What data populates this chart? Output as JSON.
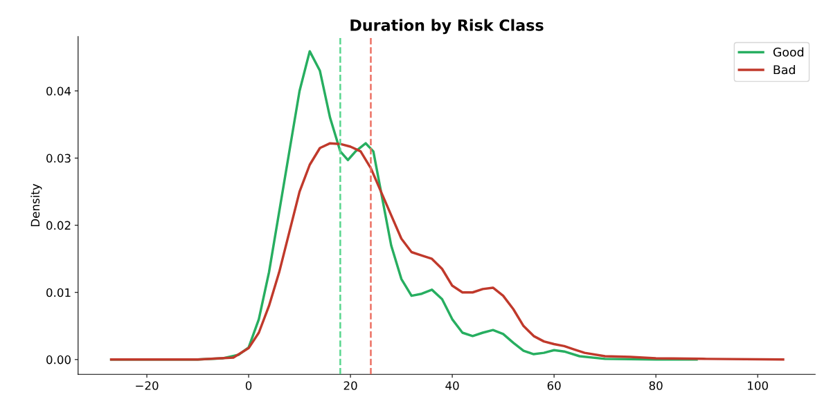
{
  "chart_data": {
    "type": "line",
    "title": "Duration by Risk Class",
    "ylabel": "Density",
    "xlim": [
      -33.5,
      111.3
    ],
    "ylim": [
      -0.0022,
      0.0481
    ],
    "xticks": [
      {
        "value": -20,
        "label": "−20"
      },
      0,
      20,
      40,
      60,
      80,
      100
    ],
    "yticks": [
      {
        "value": 0,
        "label": "0.00"
      },
      {
        "value": 0.01,
        "label": "0.01"
      },
      {
        "value": 0.02,
        "label": "0.02"
      },
      {
        "value": 0.03,
        "label": "0.03"
      },
      {
        "value": 0.04,
        "label": "0.04"
      }
    ],
    "grid": false,
    "legend": "top right",
    "marker": "none",
    "line_style": "solid",
    "series": [
      {
        "name": "Good",
        "color": "#27ae60",
        "x": [
          -27,
          -10,
          -5,
          -2,
          0,
          2,
          4,
          6,
          8,
          10,
          12,
          14,
          16,
          18,
          19.5,
          21,
          23,
          24.5,
          26,
          28,
          30,
          32,
          34,
          36,
          38,
          40,
          42,
          44,
          46,
          48,
          50,
          52,
          54,
          56,
          58,
          60,
          62,
          65,
          70,
          80,
          88
        ],
        "values": [
          0,
          0,
          0.0002,
          0.0007,
          0.0018,
          0.006,
          0.013,
          0.022,
          0.031,
          0.04,
          0.0459,
          0.043,
          0.036,
          0.031,
          0.0297,
          0.031,
          0.0322,
          0.031,
          0.025,
          0.017,
          0.012,
          0.0095,
          0.0098,
          0.0104,
          0.009,
          0.006,
          0.004,
          0.0035,
          0.004,
          0.0044,
          0.0038,
          0.0025,
          0.0013,
          0.0008,
          0.001,
          0.0014,
          0.0012,
          0.0005,
          0.0001,
          0,
          0
        ]
      },
      {
        "name": "Bad",
        "color": "#c0392b",
        "x": [
          -27,
          -10,
          -3,
          0,
          2,
          4,
          6,
          8,
          10,
          12,
          14,
          16,
          18,
          20,
          22,
          24,
          26,
          28,
          30,
          32,
          34,
          36,
          38,
          40,
          42,
          44,
          46,
          48,
          50,
          52,
          54,
          56,
          58,
          60,
          62,
          64,
          66,
          70,
          75,
          80,
          90,
          105
        ],
        "values": [
          0,
          0,
          0.0003,
          0.0017,
          0.004,
          0.008,
          0.013,
          0.019,
          0.025,
          0.029,
          0.0315,
          0.0322,
          0.0321,
          0.0317,
          0.031,
          0.0285,
          0.025,
          0.0215,
          0.018,
          0.016,
          0.0155,
          0.015,
          0.0135,
          0.011,
          0.01,
          0.01,
          0.0105,
          0.0107,
          0.0095,
          0.0075,
          0.005,
          0.0035,
          0.0027,
          0.0023,
          0.002,
          0.0015,
          0.001,
          0.0005,
          0.0004,
          0.0002,
          0.0001,
          0
        ]
      }
    ],
    "ref_lines": [
      {
        "axis": "x",
        "value": 18,
        "color": "#58d68d",
        "line_style": "dashed"
      },
      {
        "axis": "x",
        "value": 24,
        "color": "#ec7063",
        "line_style": "dashed"
      }
    ]
  }
}
